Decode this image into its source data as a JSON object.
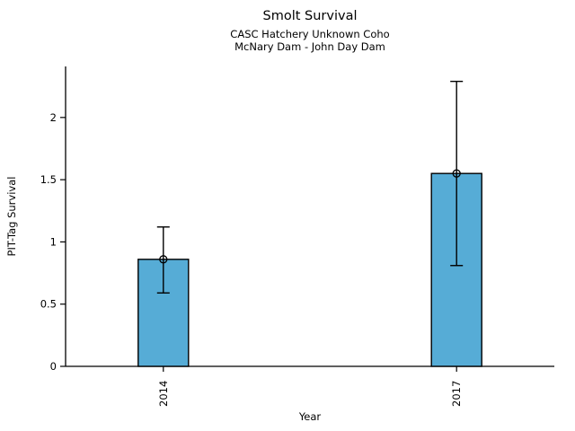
{
  "chart_data": {
    "type": "bar",
    "title": "Smolt Survival",
    "subtitle_line1": "CASC Hatchery Unknown Coho",
    "subtitle_line2": "McNary Dam - John Day Dam",
    "xlabel": "Year",
    "ylabel": "PIT-Tag Survival",
    "categories": [
      "2014",
      "2017"
    ],
    "values": [
      0.86,
      1.55
    ],
    "error_low": [
      0.59,
      0.81
    ],
    "error_high": [
      1.12,
      2.29
    ],
    "yticks": [
      0,
      0.5,
      1,
      1.5,
      2
    ],
    "ytick_labels": [
      "0",
      "0.5",
      "1",
      "1.5",
      "2"
    ],
    "ylim": [
      0,
      2.41
    ],
    "grid": false,
    "legend": "none",
    "bar_color": "#56ACD6",
    "bar_edge_color": "#000000",
    "error_color": "#000000",
    "marker": "open-circle",
    "background_color": "#ffffff"
  }
}
